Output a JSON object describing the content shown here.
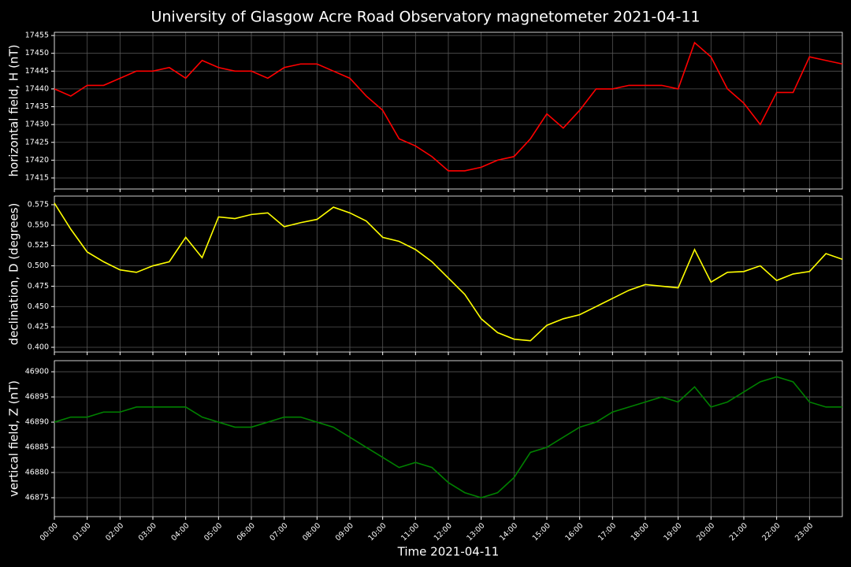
{
  "title": "University of Glasgow Acre Road Observatory magnetometer 2021-04-11",
  "chart_data": [
    {
      "type": "line",
      "ylabel": "horizontal field, H (nT)",
      "x": [
        0,
        0.5,
        1,
        1.5,
        2,
        2.5,
        3,
        3.5,
        4,
        4.5,
        5,
        5.5,
        6,
        6.5,
        7,
        7.5,
        8,
        8.5,
        9,
        9.5,
        10,
        10.5,
        11,
        11.5,
        12,
        12.5,
        13,
        13.5,
        14,
        14.5,
        15,
        15.5,
        16,
        16.5,
        17,
        17.5,
        18,
        18.5,
        19,
        19.5,
        20,
        20.5,
        21,
        21.5,
        22,
        22.5,
        23,
        23.5,
        24
      ],
      "series": [
        {
          "color": "#ff0000",
          "values": [
            17440,
            17438,
            17441,
            17441,
            17443,
            17445,
            17445,
            17446,
            17443,
            17448,
            17446,
            17445,
            17445,
            17443,
            17446,
            17447,
            17447,
            17445,
            17443,
            17438,
            17434,
            17426,
            17424,
            17421,
            17417,
            17417,
            17418,
            17420,
            17421,
            17426,
            17433,
            17429,
            17434,
            17440,
            17440,
            17441,
            17441,
            17441,
            17440,
            17453,
            17449,
            17440,
            17436,
            17430,
            17439,
            17439,
            17449,
            17448,
            17447
          ]
        }
      ],
      "xlim": [
        0,
        24
      ],
      "xticks": [
        0,
        1,
        2,
        3,
        4,
        5,
        6,
        7,
        8,
        9,
        10,
        11,
        12,
        13,
        14,
        15,
        16,
        17,
        18,
        19,
        20,
        21,
        22,
        23
      ],
      "ylim": [
        17411.9,
        17455.9
      ],
      "yticks": [
        17415,
        17420,
        17425,
        17430,
        17435,
        17440,
        17445,
        17450,
        17455
      ],
      "grid": true
    },
    {
      "type": "line",
      "ylabel": "declination, D (degrees)",
      "x": [
        0,
        0.5,
        1,
        1.5,
        2,
        2.5,
        3,
        3.5,
        4,
        4.5,
        5,
        5.5,
        6,
        6.5,
        7,
        7.5,
        8,
        8.5,
        9,
        9.5,
        10,
        10.5,
        11,
        11.5,
        12,
        12.5,
        13,
        13.5,
        14,
        14.5,
        15,
        15.5,
        16,
        16.5,
        17,
        17.5,
        18,
        18.5,
        19,
        19.5,
        20,
        20.5,
        21,
        21.5,
        22,
        22.5,
        23,
        23.5,
        24
      ],
      "series": [
        {
          "color": "#ffff00",
          "values": [
            0.577,
            0.545,
            0.517,
            0.505,
            0.495,
            0.492,
            0.5,
            0.505,
            0.535,
            0.51,
            0.56,
            0.558,
            0.563,
            0.565,
            0.548,
            0.553,
            0.557,
            0.572,
            0.565,
            0.555,
            0.535,
            0.53,
            0.52,
            0.505,
            0.485,
            0.465,
            0.435,
            0.418,
            0.41,
            0.408,
            0.427,
            0.435,
            0.44,
            0.45,
            0.46,
            0.47,
            0.477,
            0.475,
            0.473,
            0.52,
            0.48,
            0.492,
            0.493,
            0.5,
            0.482,
            0.49,
            0.493,
            0.515,
            0.508
          ]
        }
      ],
      "xlim": [
        0,
        24
      ],
      "xticks": [
        0,
        1,
        2,
        3,
        4,
        5,
        6,
        7,
        8,
        9,
        10,
        11,
        12,
        13,
        14,
        15,
        16,
        17,
        18,
        19,
        20,
        21,
        22,
        23
      ],
      "ylim": [
        0.3942,
        0.5856
      ],
      "yticks": [
        {
          "value": 0.4,
          "label": "0.400"
        },
        0.425,
        {
          "value": 0.45,
          "label": "0.450"
        },
        0.475,
        {
          "value": 0.5,
          "label": "0.500"
        },
        0.525,
        {
          "value": 0.55,
          "label": "0.550"
        },
        0.575
      ],
      "grid": true
    },
    {
      "type": "line",
      "ylabel": "vertical field, Z (nT)",
      "xlabel": "Time 2021-04-11",
      "x": [
        0,
        0.5,
        1,
        1.5,
        2,
        2.5,
        3,
        3.5,
        4,
        4.5,
        5,
        5.5,
        6,
        6.5,
        7,
        7.5,
        8,
        8.5,
        9,
        9.5,
        10,
        10.5,
        11,
        11.5,
        12,
        12.5,
        13,
        13.5,
        14,
        14.5,
        15,
        15.5,
        16,
        16.5,
        17,
        17.5,
        18,
        18.5,
        19,
        19.5,
        20,
        20.5,
        21,
        21.5,
        22,
        22.5,
        23,
        23.5,
        24
      ],
      "series": [
        {
          "color": "#008000",
          "values": [
            46890,
            46891,
            46891,
            46892,
            46892,
            46893,
            46893,
            46893,
            46893,
            46891,
            46890,
            46889,
            46889,
            46890,
            46891,
            46891,
            46890,
            46889,
            46887,
            46885,
            46883,
            46881,
            46882,
            46881,
            46878,
            46876,
            46875,
            46876,
            46879,
            46884,
            46885,
            46887,
            46889,
            46890,
            46892,
            46893,
            46894,
            46895,
            46894,
            46897,
            46893,
            46894,
            46896,
            46898,
            46899,
            46898,
            46894,
            46893,
            46893
          ]
        }
      ],
      "xlim": [
        0,
        24
      ],
      "xticks": [
        {
          "value": 0,
          "label": "00:00"
        },
        {
          "value": 1,
          "label": "01:00"
        },
        {
          "value": 2,
          "label": "02:00"
        },
        {
          "value": 3,
          "label": "03:00"
        },
        {
          "value": 4,
          "label": "04:00"
        },
        {
          "value": 5,
          "label": "05:00"
        },
        {
          "value": 6,
          "label": "06:00"
        },
        {
          "value": 7,
          "label": "07:00"
        },
        {
          "value": 8,
          "label": "08:00"
        },
        {
          "value": 9,
          "label": "09:00"
        },
        {
          "value": 10,
          "label": "10:00"
        },
        {
          "value": 11,
          "label": "11:00"
        },
        {
          "value": 12,
          "label": "12:00"
        },
        {
          "value": 13,
          "label": "13:00"
        },
        {
          "value": 14,
          "label": "14:00"
        },
        {
          "value": 15,
          "label": "15:00"
        },
        {
          "value": 16,
          "label": "16:00"
        },
        {
          "value": 17,
          "label": "17:00"
        },
        {
          "value": 18,
          "label": "18:00"
        },
        {
          "value": 19,
          "label": "19:00"
        },
        {
          "value": 20,
          "label": "20:00"
        },
        {
          "value": 21,
          "label": "21:00"
        },
        {
          "value": 22,
          "label": "22:00"
        },
        {
          "value": 23,
          "label": "23:00"
        }
      ],
      "ylim": [
        46871.25,
        46902.2
      ],
      "yticks": [
        46875,
        46880,
        46885,
        46890,
        46895,
        46900
      ],
      "grid": true
    }
  ]
}
